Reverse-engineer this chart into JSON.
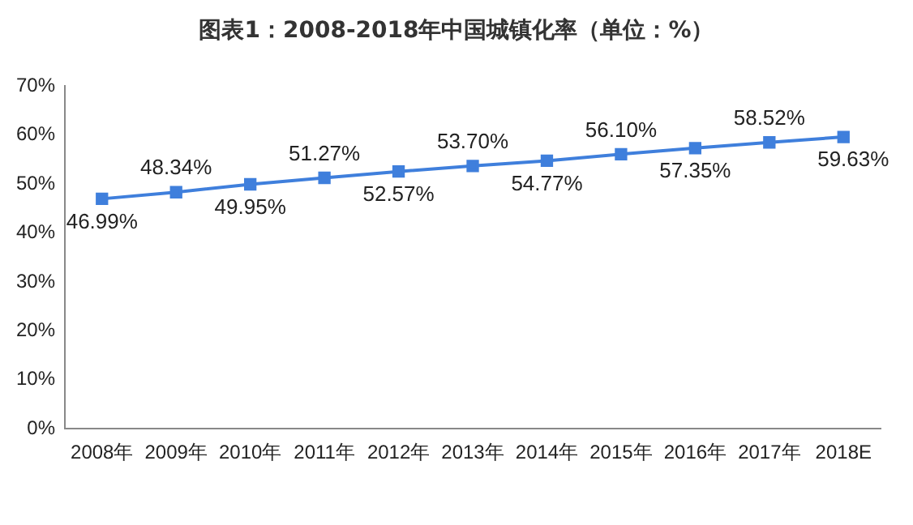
{
  "chart_data": {
    "type": "line",
    "title": "图表1：2008-2018年中国城镇化率（单位：%）",
    "categories": [
      "2008年",
      "2009年",
      "2010年",
      "2011年",
      "2012年",
      "2013年",
      "2014年",
      "2015年",
      "2016年",
      "2017年",
      "2018E"
    ],
    "series": [
      {
        "color": "#3f7fdc",
        "values": [
          46.99,
          48.34,
          49.95,
          51.27,
          52.57,
          53.7,
          54.77,
          56.1,
          57.35,
          58.52,
          59.63
        ],
        "value_labels": [
          "46.99%",
          "48.34%",
          "49.95%",
          "51.27%",
          "52.57%",
          "53.70%",
          "54.77%",
          "56.10%",
          "57.35%",
          "58.52%",
          "59.63%"
        ]
      }
    ],
    "ylim": [
      0,
      70
    ],
    "yticks": [
      {
        "value": 0,
        "label": "0%"
      },
      {
        "value": 10,
        "label": "10%"
      },
      {
        "value": 20,
        "label": "20%"
      },
      {
        "value": 30,
        "label": "30%"
      },
      {
        "value": 40,
        "label": "40%"
      },
      {
        "value": 50,
        "label": "50%"
      },
      {
        "value": 60,
        "label": "60%"
      },
      {
        "value": 70,
        "label": "70%"
      }
    ],
    "grid": false,
    "legend": false,
    "marker": "square",
    "line_style": "solid"
  }
}
